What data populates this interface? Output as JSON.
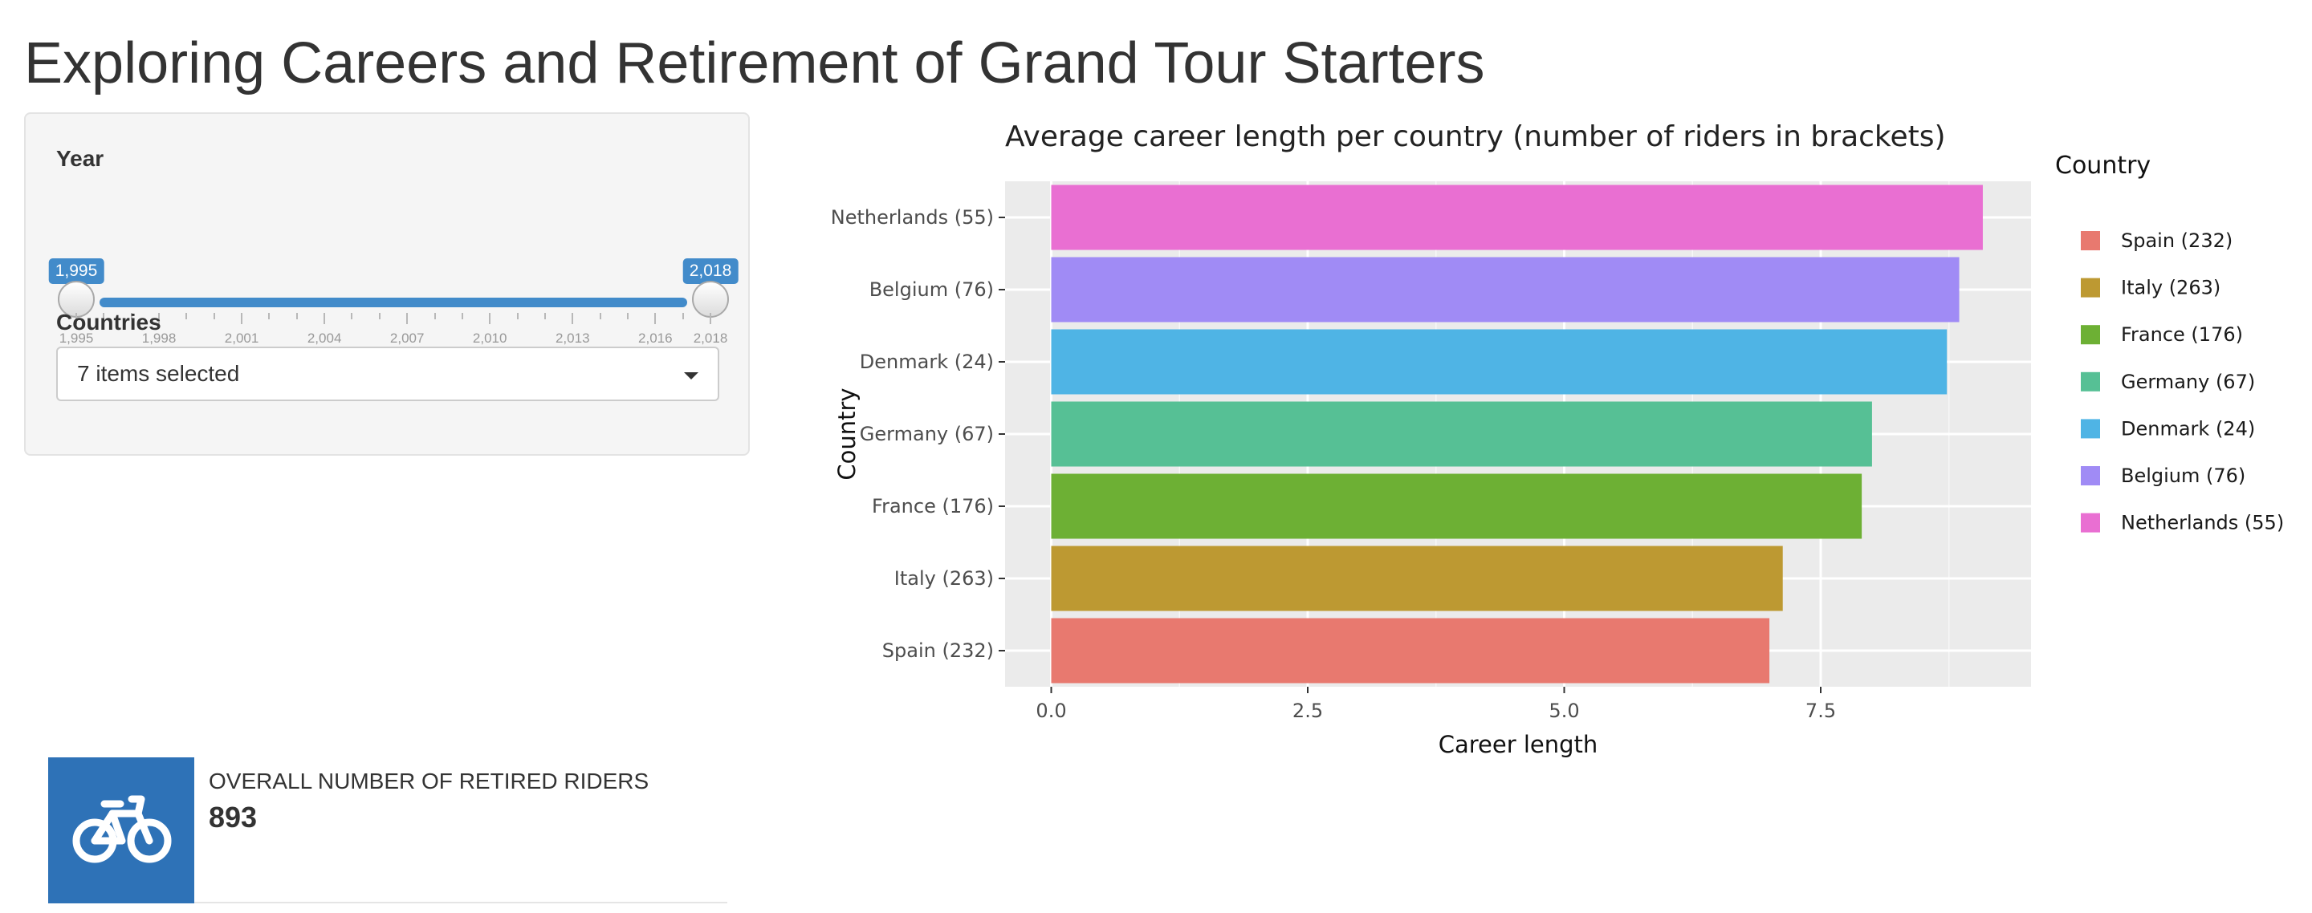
{
  "page": {
    "title": "Exploring Careers and Retirement of Grand Tour Starters"
  },
  "sidebar": {
    "year": {
      "label": "Year",
      "min": 1995,
      "max": 2018,
      "from": 1995,
      "to": 2018,
      "from_label": "1,995",
      "to_label": "2,018",
      "ticks": [
        "1,995",
        "1,998",
        "2,001",
        "2,004",
        "2,007",
        "2,010",
        "2,013",
        "2,016",
        "2,018"
      ]
    },
    "countries": {
      "label": "Countries",
      "selected_text": "7 items selected"
    }
  },
  "valuebox": {
    "icon": "bicycle-icon",
    "label": "OVERALL NUMBER OF RETIRED RIDERS",
    "value": "893",
    "color": "#2e72b7"
  },
  "chart_data": {
    "type": "bar",
    "orientation": "horizontal",
    "title": "Average career length per country (number of riders in brackets)",
    "xlabel": "Career length",
    "ylabel": "Country",
    "categories": [
      "Spain (232)",
      "Italy (263)",
      "France (176)",
      "Germany (67)",
      "Denmark (24)",
      "Belgium (76)",
      "Netherlands (55)"
    ],
    "values": [
      7.0,
      7.13,
      7.9,
      8.0,
      8.73,
      8.85,
      9.08
    ],
    "colors": [
      "#e8796f",
      "#bd9932",
      "#6db034",
      "#56c095",
      "#4fb4e5",
      "#a08bf5",
      "#e96fd2"
    ],
    "xlim": [
      -0.45,
      9.55
    ],
    "xticks": [
      0,
      2.5,
      5,
      7.5
    ],
    "xtick_labels": [
      "0.0",
      "2.5",
      "5.0",
      "7.5"
    ],
    "grid": true,
    "legend": {
      "title": "Country",
      "position": "right",
      "entries": [
        "Spain (232)",
        "Italy (263)",
        "France (176)",
        "Germany (67)",
        "Denmark (24)",
        "Belgium (76)",
        "Netherlands (55)"
      ]
    }
  }
}
